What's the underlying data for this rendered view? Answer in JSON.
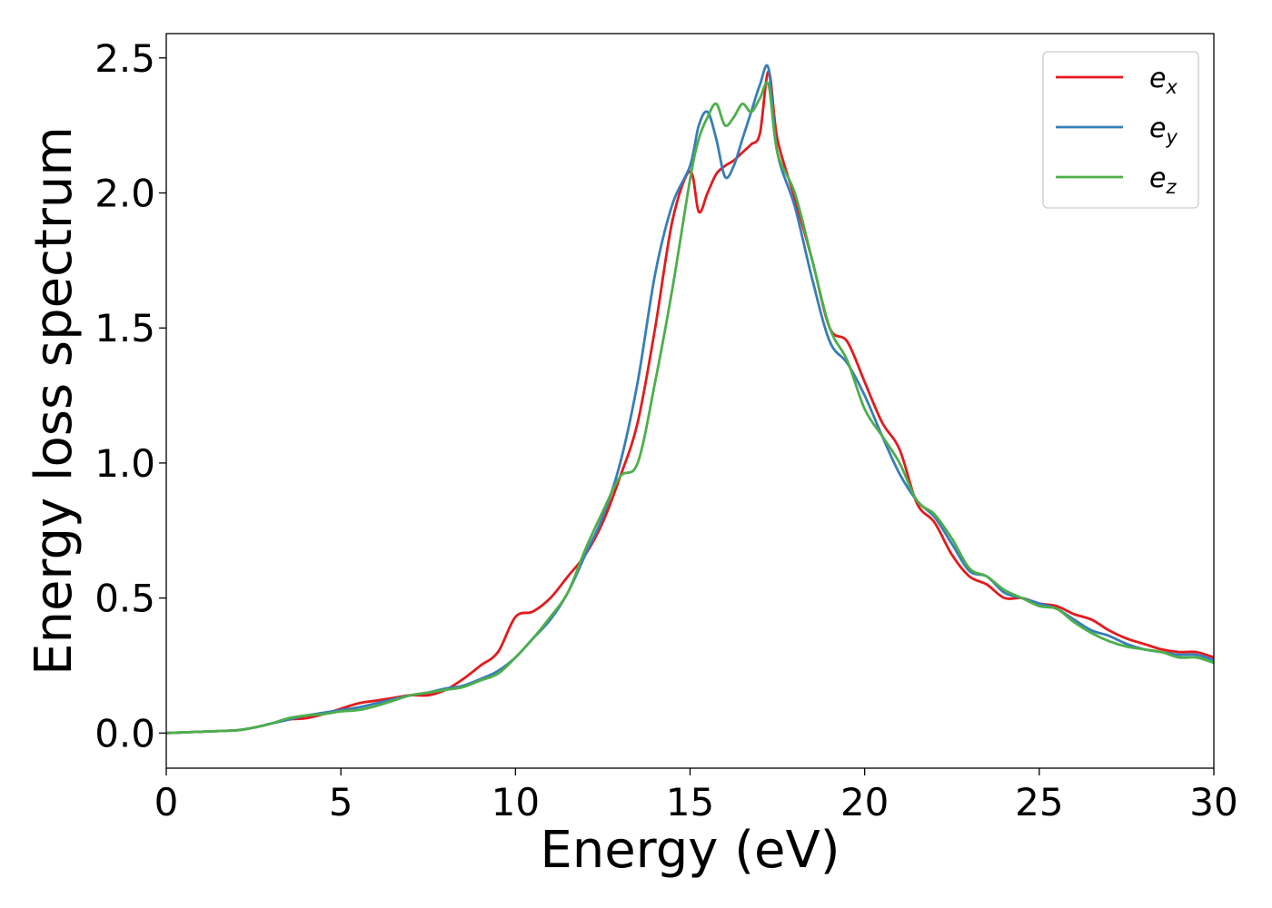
{
  "chart_data": {
    "type": "line",
    "title": "",
    "xlabel": "Energy (eV)",
    "ylabel": "Energy loss spectrum",
    "xlim": [
      0,
      30
    ],
    "ylim": [
      -0.13,
      2.59
    ],
    "xticks": [
      0,
      5,
      10,
      15,
      20,
      25,
      30
    ],
    "yticks": [
      0.0,
      0.5,
      1.0,
      1.5,
      2.0,
      2.5
    ],
    "xtick_labels": [
      "0",
      "5",
      "10",
      "15",
      "20",
      "25",
      "30"
    ],
    "ytick_labels": [
      "0.0",
      "0.5",
      "1.0",
      "1.5",
      "2.0",
      "2.5"
    ],
    "grid": false,
    "legend_position": "top-right",
    "x": [
      0,
      1,
      2,
      2.5,
      3,
      3.5,
      4,
      4.5,
      5,
      5.5,
      6,
      6.5,
      7,
      7.5,
      8,
      8.5,
      9,
      9.5,
      10,
      10.5,
      11,
      11.5,
      12,
      12.5,
      13,
      13.5,
      14,
      14.5,
      15,
      15.25,
      15.5,
      15.75,
      16,
      16.25,
      16.5,
      16.75,
      17,
      17.25,
      17.5,
      18,
      18.5,
      19,
      19.5,
      20,
      20.5,
      21,
      21.5,
      22,
      22.5,
      23,
      23.5,
      24,
      24.5,
      25,
      25.5,
      26,
      26.5,
      27,
      27.5,
      28,
      28.5,
      29,
      29.5,
      30
    ],
    "series": [
      {
        "name_base": "e",
        "name_sub": "x",
        "color": "#e41a1c",
        "values": [
          0,
          0.005,
          0.01,
          0.02,
          0.035,
          0.05,
          0.055,
          0.07,
          0.09,
          0.11,
          0.12,
          0.13,
          0.14,
          0.14,
          0.16,
          0.2,
          0.25,
          0.3,
          0.43,
          0.45,
          0.5,
          0.58,
          0.66,
          0.78,
          0.95,
          1.15,
          1.5,
          1.9,
          2.08,
          1.93,
          2.0,
          2.07,
          2.1,
          2.12,
          2.15,
          2.18,
          2.22,
          2.45,
          2.2,
          1.98,
          1.75,
          1.5,
          1.45,
          1.3,
          1.15,
          1.05,
          0.85,
          0.78,
          0.66,
          0.58,
          0.55,
          0.5,
          0.5,
          0.48,
          0.47,
          0.44,
          0.42,
          0.38,
          0.35,
          0.33,
          0.31,
          0.3,
          0.3,
          0.28
        ]
      },
      {
        "name_base": "e",
        "name_sub": "y",
        "color": "#377eb8",
        "values": [
          0,
          0.005,
          0.01,
          0.02,
          0.035,
          0.05,
          0.065,
          0.075,
          0.085,
          0.095,
          0.11,
          0.125,
          0.14,
          0.15,
          0.165,
          0.175,
          0.2,
          0.23,
          0.28,
          0.35,
          0.42,
          0.52,
          0.66,
          0.8,
          1.0,
          1.3,
          1.7,
          1.96,
          2.1,
          2.25,
          2.3,
          2.2,
          2.06,
          2.1,
          2.2,
          2.3,
          2.4,
          2.46,
          2.15,
          1.95,
          1.68,
          1.45,
          1.37,
          1.25,
          1.1,
          0.96,
          0.86,
          0.8,
          0.7,
          0.6,
          0.58,
          0.52,
          0.5,
          0.48,
          0.46,
          0.42,
          0.38,
          0.36,
          0.33,
          0.31,
          0.3,
          0.29,
          0.29,
          0.27
        ]
      },
      {
        "name_base": "e",
        "name_sub": "z",
        "color": "#4daf4a",
        "values": [
          0,
          0.005,
          0.01,
          0.02,
          0.035,
          0.055,
          0.065,
          0.07,
          0.08,
          0.085,
          0.1,
          0.12,
          0.14,
          0.15,
          0.16,
          0.17,
          0.195,
          0.22,
          0.28,
          0.35,
          0.43,
          0.52,
          0.68,
          0.82,
          0.95,
          1.0,
          1.3,
          1.65,
          2.05,
          2.2,
          2.28,
          2.33,
          2.25,
          2.28,
          2.33,
          2.3,
          2.35,
          2.4,
          2.15,
          2.0,
          1.75,
          1.5,
          1.38,
          1.2,
          1.1,
          1.0,
          0.86,
          0.81,
          0.72,
          0.61,
          0.58,
          0.53,
          0.5,
          0.47,
          0.46,
          0.41,
          0.37,
          0.34,
          0.32,
          0.31,
          0.3,
          0.28,
          0.28,
          0.26
        ]
      }
    ]
  }
}
